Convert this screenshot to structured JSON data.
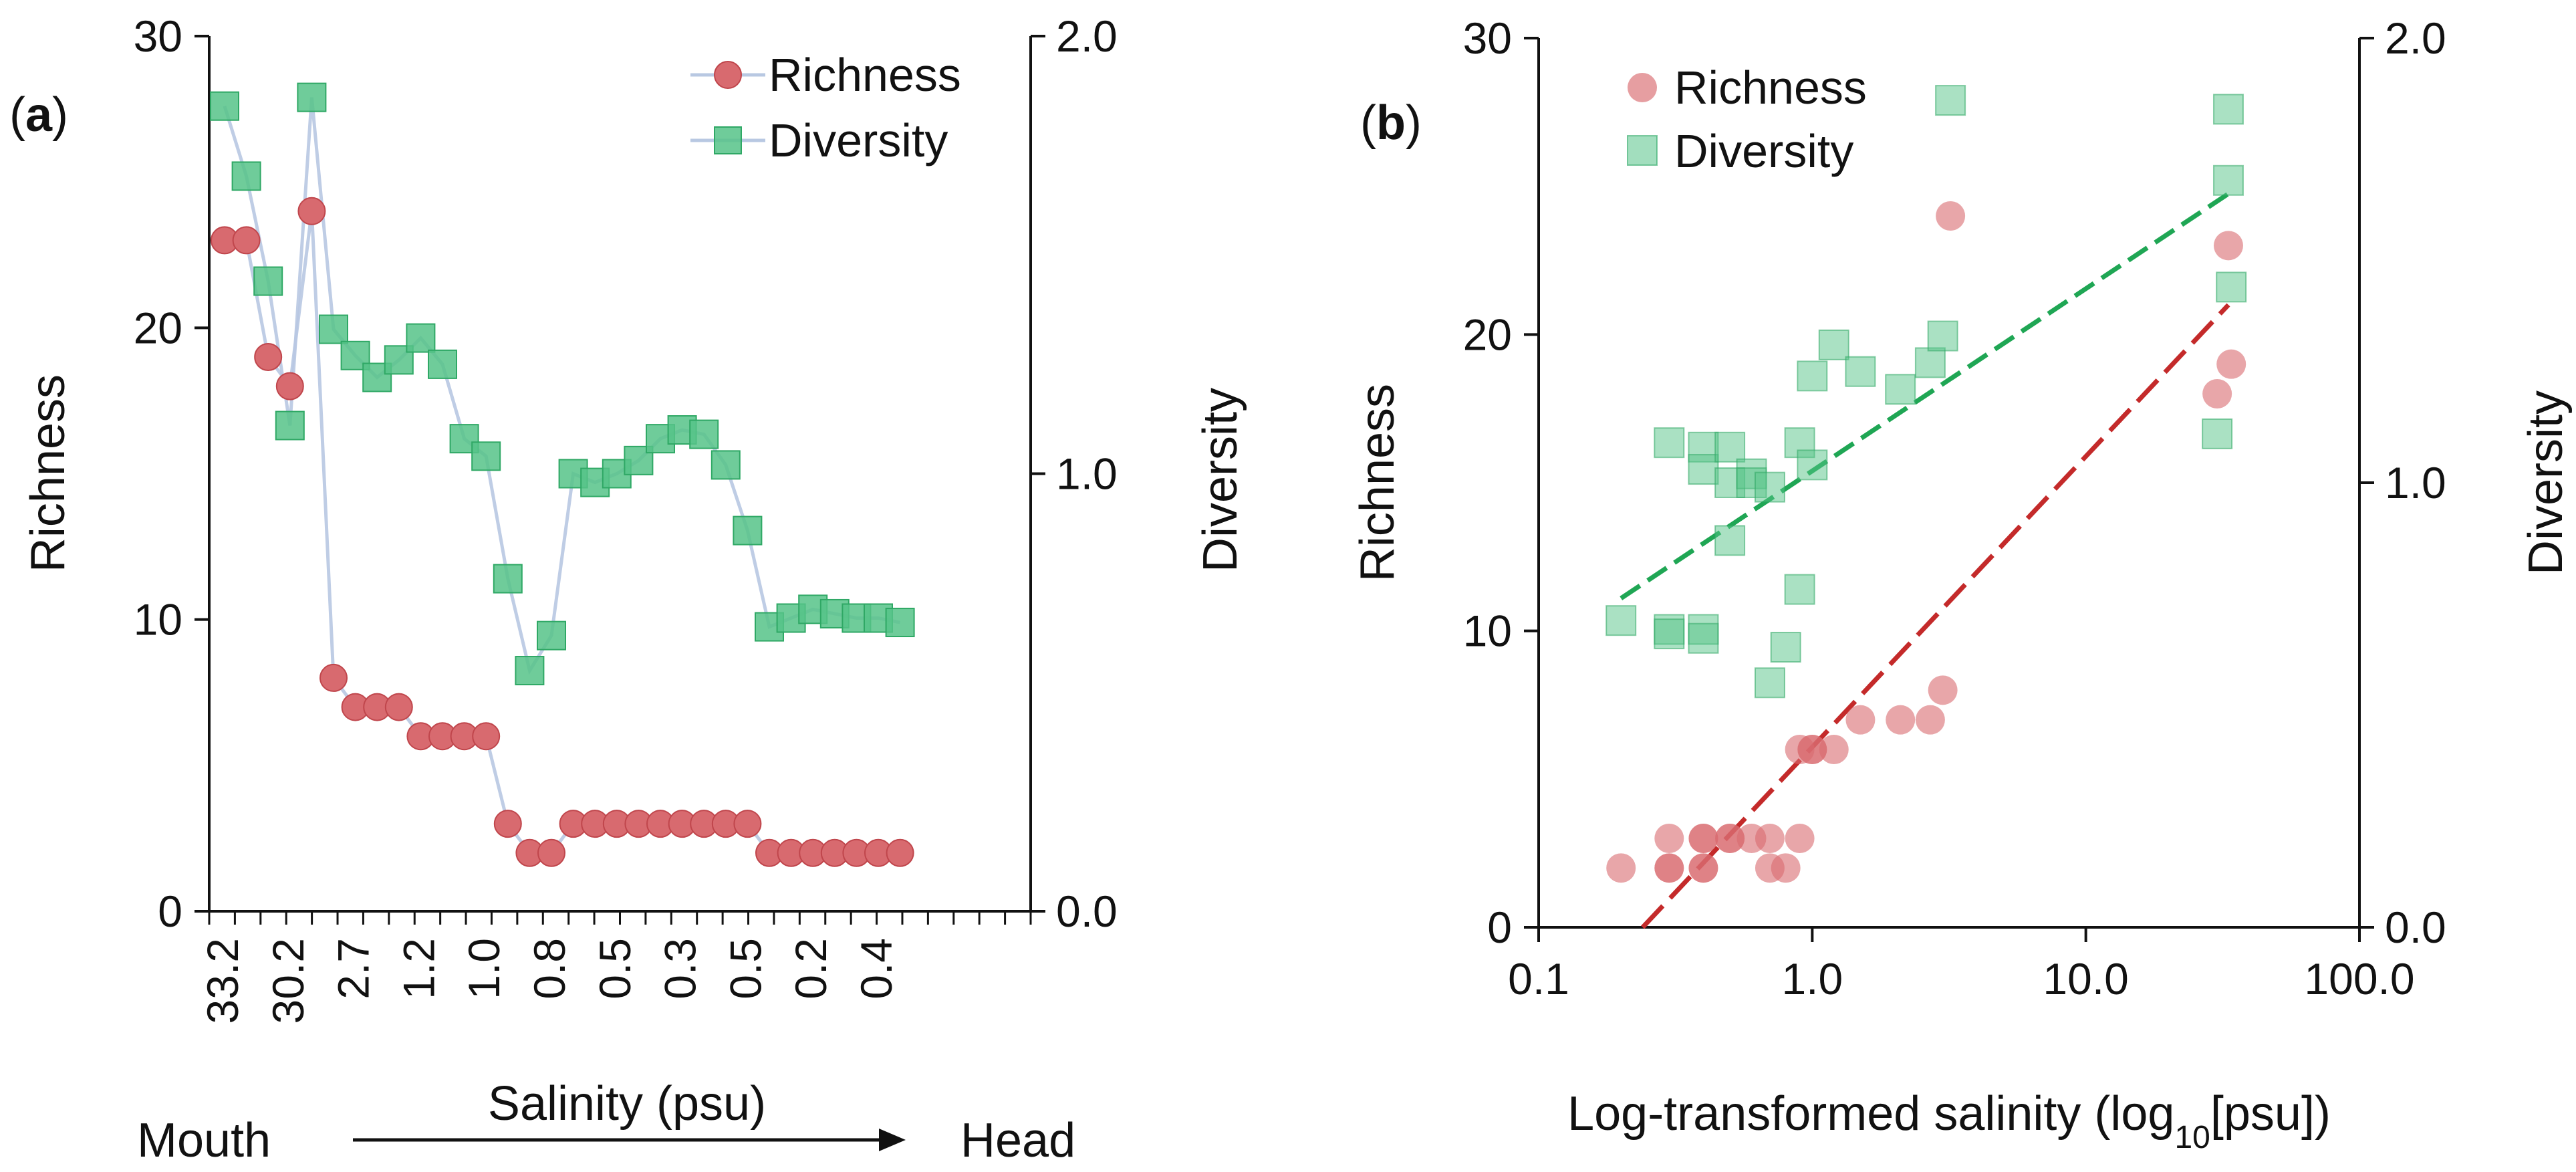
{
  "colors": {
    "richness": "#d86a6f",
    "richness_edge": "#c0464c",
    "diversity": "#56c388",
    "diversity_edge": "#2fa865",
    "connector": "#b8c8e2",
    "trend_richness": "#c42a2a",
    "trend_diversity": "#1fa654"
  },
  "chart_data": [
    {
      "type": "line",
      "panel_label_open": "(",
      "panel_label_letter": "a",
      "panel_label_close": ")",
      "ylabel_left": "Richness",
      "ylabel_right": "Diversity",
      "xlabel": "Salinity (psu)",
      "direction_from": "Mouth",
      "direction_to": "Head",
      "ylim_left": [
        0,
        30
      ],
      "ylim_right": [
        0,
        2.0
      ],
      "yticks_left": [
        "0",
        "10",
        "20",
        "30"
      ],
      "yticks_right": [
        "0.0",
        "1.0",
        "2.0"
      ],
      "x_tick_labels": [
        "33.2",
        "30.2",
        "2.7",
        "1.2",
        "1.0",
        "0.8",
        "0.5",
        "0.3",
        "0.5",
        "0.2",
        "0.4"
      ],
      "x_tick_sites": [
        1,
        4,
        7,
        10,
        13,
        16,
        19,
        22,
        25,
        28,
        31
      ],
      "legend": [
        "Richness",
        "Diversity"
      ],
      "legend_position": "top-right",
      "series": [
        {
          "name": "Richness",
          "axis": "left",
          "values": [
            23,
            23,
            19,
            18,
            24,
            8,
            7,
            7,
            7,
            6,
            6,
            6,
            6,
            3,
            2,
            2,
            3,
            3,
            3,
            3,
            3,
            3,
            3,
            3,
            3,
            2,
            2,
            2,
            2,
            2,
            2,
            2
          ]
        },
        {
          "name": "Diversity",
          "axis": "right",
          "values": [
            1.84,
            1.68,
            1.44,
            1.11,
            1.86,
            1.33,
            1.27,
            1.22,
            1.26,
            1.31,
            1.25,
            1.08,
            1.04,
            0.76,
            0.55,
            0.63,
            1.0,
            0.98,
            1.0,
            1.03,
            1.08,
            1.1,
            1.09,
            1.02,
            0.87,
            0.65,
            0.67,
            0.69,
            0.68,
            0.67,
            0.67,
            0.66
          ]
        }
      ]
    },
    {
      "type": "scatter",
      "panel_label_open": "(",
      "panel_label_letter": "b",
      "panel_label_close": ")",
      "ylabel_left": "Richness",
      "ylabel_right": "Diversity",
      "xlabel_main": "Log-transformed salinity (log",
      "xlabel_sub": "10",
      "xlabel_end": "[psu])",
      "x_scale": "log10",
      "xlim": [
        0.1,
        100
      ],
      "xticks": [
        0.1,
        1,
        10,
        100
      ],
      "xtick_labels": [
        "0.1",
        "1.0",
        "10.0",
        "100.0"
      ],
      "ylim_left": [
        0,
        30
      ],
      "ylim_right": [
        0,
        2.0
      ],
      "yticks_left": [
        "0",
        "10",
        "20",
        "30"
      ],
      "yticks_right": [
        "0.0",
        "1.0",
        "2.0"
      ],
      "legend": [
        "Richness",
        "Diversity"
      ],
      "legend_position": "top-left",
      "series": [
        {
          "name": "Richness",
          "axis": "left",
          "points": [
            [
              0.2,
              2
            ],
            [
              0.3,
              2
            ],
            [
              0.3,
              2
            ],
            [
              0.3,
              3
            ],
            [
              0.4,
              2
            ],
            [
              0.4,
              2
            ],
            [
              0.4,
              3
            ],
            [
              0.4,
              3
            ],
            [
              0.5,
              3
            ],
            [
              0.5,
              3
            ],
            [
              0.6,
              3
            ],
            [
              0.7,
              2
            ],
            [
              0.7,
              3
            ],
            [
              0.8,
              2
            ],
            [
              0.9,
              3
            ],
            [
              0.9,
              6
            ],
            [
              1.0,
              6
            ],
            [
              1.0,
              6
            ],
            [
              1.2,
              6
            ],
            [
              1.5,
              7
            ],
            [
              2.1,
              7
            ],
            [
              2.7,
              7
            ],
            [
              3.0,
              8
            ],
            [
              3.2,
              24
            ],
            [
              30.2,
              18
            ],
            [
              33.2,
              23
            ],
            [
              34.0,
              19
            ]
          ]
        },
        {
          "name": "Diversity",
          "axis": "right",
          "points": [
            [
              0.2,
              0.69
            ],
            [
              0.3,
              1.09
            ],
            [
              0.3,
              0.67
            ],
            [
              0.3,
              0.66
            ],
            [
              0.4,
              1.08
            ],
            [
              0.4,
              1.03
            ],
            [
              0.4,
              0.67
            ],
            [
              0.4,
              0.65
            ],
            [
              0.5,
              1.08
            ],
            [
              0.5,
              1.0
            ],
            [
              0.5,
              0.87
            ],
            [
              0.6,
              1.02
            ],
            [
              0.6,
              1.0
            ],
            [
              0.7,
              0.99
            ],
            [
              0.7,
              0.55
            ],
            [
              0.8,
              0.63
            ],
            [
              0.9,
              1.09
            ],
            [
              0.9,
              0.76
            ],
            [
              1.0,
              1.24
            ],
            [
              1.0,
              1.04
            ],
            [
              1.2,
              1.31
            ],
            [
              1.5,
              1.25
            ],
            [
              2.1,
              1.21
            ],
            [
              2.7,
              1.27
            ],
            [
              3.0,
              1.33
            ],
            [
              3.2,
              1.86
            ],
            [
              30.2,
              1.11
            ],
            [
              33.2,
              1.84
            ],
            [
              33.2,
              1.68
            ],
            [
              34.0,
              1.44
            ]
          ]
        }
      ],
      "trendlines": [
        {
          "name": "Richness trend",
          "axis": "left",
          "from": [
            0.24,
            0
          ],
          "to": [
            33.2,
            21
          ]
        },
        {
          "name": "Diversity trend",
          "axis": "right",
          "from": [
            0.2,
            0.74
          ],
          "to": [
            33.2,
            1.65
          ]
        }
      ]
    }
  ]
}
